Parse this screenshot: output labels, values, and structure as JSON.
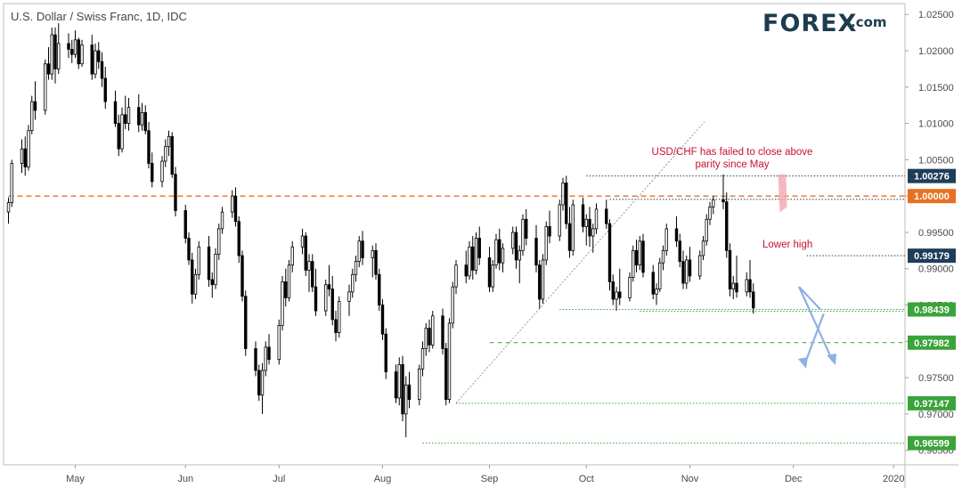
{
  "header": {
    "title": "U.S. Dollar / Swiss Franc, 1D, IDC",
    "logo_main": "FOREX",
    "logo_suffix": ".com"
  },
  "colors": {
    "up_candle": "#ffffff",
    "down_candle": "#000000",
    "parity_line": "#e8711f",
    "support_line": "#3aa33a",
    "resistance_line": "#1e3d59",
    "trendline": "#9a9a9a",
    "arrow": "#8fb0e6",
    "annotation": "#c8102e",
    "logo": "#1d3c4f",
    "logo_accent": "#29a745"
  },
  "chart_data": {
    "type": "candlestick",
    "title": "U.S. Dollar / Swiss Franc, 1D, IDC",
    "x_axis": {
      "labels": [
        "May",
        "Jun",
        "Jul",
        "Aug",
        "Sep",
        "Oct",
        "Nov",
        "Dec",
        "2020"
      ]
    },
    "y_axis": {
      "position": "right",
      "ylim": [
        0.963,
        1.0265
      ],
      "ticks": [
        "1.02500",
        "1.02000",
        "1.01500",
        "1.01000",
        "1.00500",
        "1.00000",
        "0.99500",
        "0.99000",
        "0.98500",
        "0.98000",
        "0.97500",
        "0.97000",
        "0.96500"
      ]
    },
    "level_tags": [
      {
        "value": "1.00276",
        "style": "resistance"
      },
      {
        "value": "1.00000",
        "style": "parity"
      },
      {
        "value": "0.99179",
        "style": "resistance"
      },
      {
        "value": "0.98439",
        "style": "support"
      },
      {
        "value": "0.97982",
        "style": "support"
      },
      {
        "value": "0.97147",
        "style": "support"
      },
      {
        "value": "0.96599",
        "style": "support"
      }
    ],
    "annotations": [
      {
        "text": "USD/CHF has failed to close above",
        "at": "2019-11-30"
      },
      {
        "text": "parity since May",
        "at": "2019-11-30"
      },
      {
        "text": "Lower high",
        "at": "2019-12-06"
      }
    ],
    "start_date": "2019-04-11",
    "candles": [
      [
        0.9978,
        0.9998,
        0.9962,
        0.9991
      ],
      [
        0.9991,
        1.005,
        0.9985,
        1.0045
      ],
      [
        1.0045,
        1.0078,
        1.0032,
        1.0065
      ],
      [
        1.0065,
        1.0082,
        1.0028,
        1.004
      ],
      [
        1.004,
        1.0098,
        1.0035,
        1.009
      ],
      [
        1.009,
        1.0138,
        1.0085,
        1.013
      ],
      [
        1.013,
        1.0158,
        1.0105,
        1.0118
      ],
      [
        1.0118,
        1.0188,
        1.0112,
        1.0182
      ],
      [
        1.0182,
        1.0205,
        1.016,
        1.0168
      ],
      [
        1.0168,
        1.0232,
        1.016,
        1.0222
      ],
      [
        1.0222,
        1.0232,
        1.0155,
        1.0175
      ],
      [
        1.0175,
        1.0238,
        1.0168,
        1.021
      ],
      [
        1.021,
        1.0224,
        1.019,
        1.0202
      ],
      [
        1.0202,
        1.0215,
        1.0183,
        1.0195
      ],
      [
        1.0195,
        1.0228,
        1.019,
        1.0215
      ],
      [
        1.0215,
        1.0218,
        1.0175,
        1.0182
      ],
      [
        1.0182,
        1.0215,
        1.0178,
        1.0208
      ],
      [
        1.0208,
        1.0222,
        1.016,
        1.0168
      ],
      [
        1.0168,
        1.021,
        1.0162,
        1.02
      ],
      [
        1.02,
        1.0212,
        1.0175,
        1.0185
      ],
      [
        1.0185,
        1.0198,
        1.015,
        1.0162
      ],
      [
        1.0162,
        1.0178,
        1.012,
        1.013
      ],
      [
        1.013,
        1.0145,
        1.0095,
        1.01
      ],
      [
        1.01,
        1.0112,
        1.0055,
        1.0065
      ],
      [
        1.0065,
        1.0122,
        1.006,
        1.0112
      ],
      [
        1.0112,
        1.0138,
        1.0092,
        1.01
      ],
      [
        1.01,
        1.0135,
        1.009,
        1.0122
      ],
      [
        1.0122,
        1.014,
        1.0088,
        1.0098
      ],
      [
        1.0098,
        1.0128,
        1.009,
        1.0115
      ],
      [
        1.0115,
        1.0125,
        1.0085,
        1.009
      ],
      [
        1.009,
        1.0102,
        1.0038,
        1.0045
      ],
      [
        1.0045,
        1.006,
        1.0012,
        1.002
      ],
      [
        1.002,
        1.0055,
        1.0012,
        1.0048
      ],
      [
        1.0048,
        1.0078,
        1.004,
        1.0068
      ],
      [
        1.0068,
        1.009,
        1.0055,
        1.0082
      ],
      [
        1.0082,
        1.0088,
        1.0025,
        1.003
      ],
      [
        1.003,
        1.004,
        0.9972,
        0.998
      ],
      [
        0.998,
        0.9988,
        0.9935,
        0.9942
      ],
      [
        0.9942,
        0.995,
        0.9905,
        0.9912
      ],
      [
        0.9912,
        0.9922,
        0.9852,
        0.9865
      ],
      [
        0.9865,
        0.99,
        0.9858,
        0.9892
      ],
      [
        0.9892,
        0.9938,
        0.9885,
        0.993
      ],
      [
        0.993,
        0.9945,
        0.9875,
        0.9885
      ],
      [
        0.9885,
        0.9895,
        0.986,
        0.9878
      ],
      [
        0.9878,
        0.9928,
        0.9872,
        0.992
      ],
      [
        0.992,
        0.9962,
        0.9912,
        0.9955
      ],
      [
        0.9955,
        0.9985,
        0.9948,
        0.9978
      ],
      [
        0.9978,
        1.0008,
        0.997,
        1.0
      ],
      [
        1.0,
        1.0012,
        0.9958,
        0.9965
      ],
      [
        0.9965,
        0.9972,
        0.9908,
        0.9918
      ],
      [
        0.9918,
        0.9925,
        0.9855,
        0.9862
      ],
      [
        0.9862,
        0.987,
        0.978,
        0.979
      ],
      [
        0.979,
        0.98,
        0.9752,
        0.976
      ],
      [
        0.976,
        0.9768,
        0.9718,
        0.9726
      ],
      [
        0.9726,
        0.977,
        0.97,
        0.976
      ],
      [
        0.976,
        0.98,
        0.9752,
        0.9792
      ],
      [
        0.9792,
        0.981,
        0.9768,
        0.9775
      ],
      [
        0.9775,
        0.983,
        0.9768,
        0.9822
      ],
      [
        0.9822,
        0.989,
        0.9815,
        0.9882
      ],
      [
        0.9882,
        0.99,
        0.9848,
        0.986
      ],
      [
        0.986,
        0.9912,
        0.9855,
        0.9905
      ],
      [
        0.9905,
        0.9938,
        0.9895,
        0.993
      ],
      [
        0.993,
        0.9955,
        0.992,
        0.9945
      ],
      [
        0.9945,
        0.995,
        0.989,
        0.9898
      ],
      [
        0.9898,
        0.992,
        0.9868,
        0.991
      ],
      [
        0.991,
        0.992,
        0.9868,
        0.9875
      ],
      [
        0.9875,
        0.99,
        0.9835,
        0.9842
      ],
      [
        0.9842,
        0.9885,
        0.9835,
        0.9878
      ],
      [
        0.9878,
        0.9905,
        0.9862,
        0.9872
      ],
      [
        0.9872,
        0.989,
        0.9822,
        0.983
      ],
      [
        0.983,
        0.9842,
        0.98,
        0.9812
      ],
      [
        0.9812,
        0.9862,
        0.9805,
        0.9855
      ],
      [
        0.9855,
        0.9878,
        0.9835,
        0.9868
      ],
      [
        0.9868,
        0.99,
        0.986,
        0.9892
      ],
      [
        0.9892,
        0.9918,
        0.9882,
        0.991
      ],
      [
        0.991,
        0.9945,
        0.9902,
        0.9938
      ],
      [
        0.9938,
        0.9952,
        0.9905,
        0.9915
      ],
      [
        0.9915,
        0.9932,
        0.9888,
        0.9925
      ],
      [
        0.9925,
        0.9935,
        0.9885,
        0.9892
      ],
      [
        0.9892,
        0.99,
        0.9842,
        0.985
      ],
      [
        0.985,
        0.9858,
        0.9802,
        0.981
      ],
      [
        0.981,
        0.9818,
        0.9748,
        0.9758
      ],
      [
        0.9758,
        0.9768,
        0.9715,
        0.9722
      ],
      [
        0.9722,
        0.9778,
        0.9712,
        0.9768
      ],
      [
        0.9768,
        0.978,
        0.969,
        0.97
      ],
      [
        0.97,
        0.9752,
        0.9668,
        0.974
      ],
      [
        0.974,
        0.9758,
        0.9708,
        0.972
      ],
      [
        0.972,
        0.9768,
        0.9712,
        0.9762
      ],
      [
        0.9762,
        0.98,
        0.9752,
        0.979
      ],
      [
        0.979,
        0.9825,
        0.978,
        0.9818
      ],
      [
        0.9818,
        0.983,
        0.9785,
        0.9795
      ],
      [
        0.9795,
        0.9842,
        0.979,
        0.9835
      ],
      [
        0.9835,
        0.9845,
        0.9782,
        0.979
      ],
      [
        0.979,
        0.9798,
        0.9712,
        0.972
      ],
      [
        0.972,
        0.9832,
        0.9715,
        0.9825
      ],
      [
        0.9825,
        0.9882,
        0.9818,
        0.9875
      ],
      [
        0.9875,
        0.9912,
        0.9865,
        0.9905
      ],
      [
        0.9905,
        0.9925,
        0.988,
        0.989
      ],
      [
        0.989,
        0.9938,
        0.9885,
        0.993
      ],
      [
        0.993,
        0.9945,
        0.9885,
        0.9898
      ],
      [
        0.9898,
        0.995,
        0.9892,
        0.9942
      ],
      [
        0.9942,
        0.9958,
        0.9905,
        0.9915
      ],
      [
        0.9915,
        0.993,
        0.9868,
        0.9875
      ],
      [
        0.9875,
        0.9912,
        0.9868,
        0.9905
      ],
      [
        0.9905,
        0.9948,
        0.99,
        0.994
      ],
      [
        0.994,
        0.9955,
        0.9898,
        0.9908
      ],
      [
        0.9908,
        0.9935,
        0.9895,
        0.9928
      ],
      [
        0.9928,
        0.9958,
        0.992,
        0.995
      ],
      [
        0.995,
        0.9958,
        0.99,
        0.9912
      ],
      [
        0.9912,
        0.9932,
        0.988,
        0.9925
      ],
      [
        0.9925,
        0.9975,
        0.9918,
        0.9968
      ],
      [
        0.9968,
        0.9982,
        0.9932,
        0.9942
      ],
      [
        0.9942,
        0.996,
        0.9895,
        0.9905
      ],
      [
        0.9905,
        0.9912,
        0.9845,
        0.9858
      ],
      [
        0.9858,
        0.992,
        0.9852,
        0.9912
      ],
      [
        0.9912,
        0.9965,
        0.9905,
        0.9958
      ],
      [
        0.9958,
        0.998,
        0.9935,
        0.9945
      ],
      [
        0.9945,
        0.9995,
        0.9938,
        0.9988
      ],
      [
        0.9988,
        1.0025,
        0.998,
        1.0018
      ],
      [
        1.0018,
        1.0028,
        0.9955,
        0.9962
      ],
      [
        0.9962,
        0.9985,
        0.9915,
        0.9925
      ],
      [
        0.9925,
        0.9995,
        0.9918,
        0.9988
      ],
      [
        0.9988,
        0.9998,
        0.995,
        0.9958
      ],
      [
        0.9958,
        0.9975,
        0.9932,
        0.9968
      ],
      [
        0.9968,
        0.9985,
        0.993,
        0.9945
      ],
      [
        0.9945,
        0.9962,
        0.9922,
        0.9955
      ],
      [
        0.9955,
        0.999,
        0.9948,
        0.9982
      ],
      [
        0.9982,
        0.9995,
        0.9955,
        0.9962
      ],
      [
        0.9962,
        0.9968,
        0.987,
        0.9882
      ],
      [
        0.9882,
        0.9892,
        0.985,
        0.9858
      ],
      [
        0.9858,
        0.9875,
        0.9842,
        0.9868
      ],
      [
        0.9868,
        0.99,
        0.985,
        0.986
      ],
      [
        0.986,
        0.9895,
        0.9855,
        0.9888
      ],
      [
        0.9888,
        0.9932,
        0.9882,
        0.9925
      ],
      [
        0.9925,
        0.994,
        0.9895,
        0.9905
      ],
      [
        0.9905,
        0.9945,
        0.9898,
        0.9938
      ],
      [
        0.9938,
        0.9948,
        0.9888,
        0.9895
      ],
      [
        0.9895,
        0.9905,
        0.9858,
        0.9865
      ],
      [
        0.9865,
        0.988,
        0.985,
        0.9872
      ],
      [
        0.9872,
        0.9915,
        0.9868,
        0.9908
      ],
      [
        0.9908,
        0.9932,
        0.9898,
        0.9925
      ],
      [
        0.9925,
        0.9962,
        0.9918,
        0.9955
      ],
      [
        0.9955,
        0.9972,
        0.993,
        0.9938
      ],
      [
        0.9938,
        0.9948,
        0.9902,
        0.991
      ],
      [
        0.991,
        0.9925,
        0.9872,
        0.988
      ],
      [
        0.988,
        0.9918,
        0.9872,
        0.9912
      ],
      [
        0.9912,
        0.993,
        0.9882,
        0.989
      ],
      [
        0.989,
        0.9925,
        0.9885,
        0.9918
      ],
      [
        0.9918,
        0.9945,
        0.9912,
        0.9938
      ],
      [
        0.9938,
        0.9975,
        0.9932,
        0.9968
      ],
      [
        0.9968,
        0.9992,
        0.996,
        0.9985
      ],
      [
        0.9985,
        1.0,
        0.9975,
        0.9995
      ],
      [
        0.9995,
        1.003,
        0.9982,
        0.9992
      ],
      [
        0.9992,
        1.0005,
        0.9915,
        0.9925
      ],
      [
        0.9925,
        0.9935,
        0.9862,
        0.9872
      ],
      [
        0.9872,
        0.989,
        0.9858,
        0.988
      ],
      [
        0.988,
        0.9918,
        0.986,
        0.9868
      ],
      [
        0.9868,
        0.9895,
        0.9862,
        0.9885
      ],
      [
        0.9885,
        0.9912,
        0.986,
        0.9868
      ],
      [
        0.9868,
        0.988,
        0.9838,
        0.9846
      ]
    ],
    "grid": false,
    "legend": "none"
  }
}
